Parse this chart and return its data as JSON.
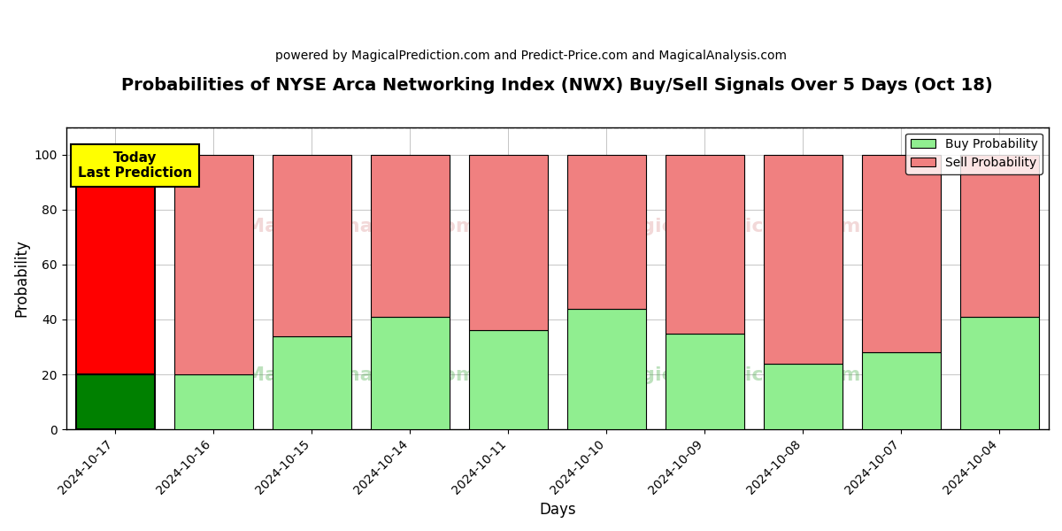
{
  "title": "Probabilities of NYSE Arca Networking Index (NWX) Buy/Sell Signals Over 5 Days (Oct 18)",
  "subtitle": "powered by MagicalPrediction.com and Predict-Price.com and MagicalAnalysis.com",
  "xlabel": "Days",
  "ylabel": "Probability",
  "categories": [
    "2024-10-17",
    "2024-10-16",
    "2024-10-15",
    "2024-10-14",
    "2024-10-11",
    "2024-10-10",
    "2024-10-09",
    "2024-10-08",
    "2024-10-07",
    "2024-10-04"
  ],
  "buy_values": [
    20,
    20,
    34,
    41,
    36,
    44,
    35,
    24,
    28,
    41
  ],
  "sell_values": [
    80,
    80,
    66,
    59,
    64,
    56,
    65,
    76,
    72,
    59
  ],
  "today_bar_buy_color": "#008000",
  "today_bar_sell_color": "#FF0000",
  "other_bar_buy_color": "#90EE90",
  "other_bar_sell_color": "#F08080",
  "today_annotation_text": "Today\nLast Prediction",
  "today_annotation_bg": "#FFFF00",
  "legend_buy_label": "Buy Probability",
  "legend_sell_label": "Sell Probability",
  "ylim_max": 110,
  "yticks": [
    0,
    20,
    40,
    60,
    80,
    100
  ],
  "dashed_line_y": 110,
  "background_color": "#ffffff",
  "grid_color": "#bbbbbb",
  "bar_width": 0.8,
  "title_fontsize": 14,
  "subtitle_fontsize": 10,
  "axis_label_fontsize": 12,
  "tick_fontsize": 10,
  "legend_fontsize": 10,
  "annotation_fontsize": 11
}
